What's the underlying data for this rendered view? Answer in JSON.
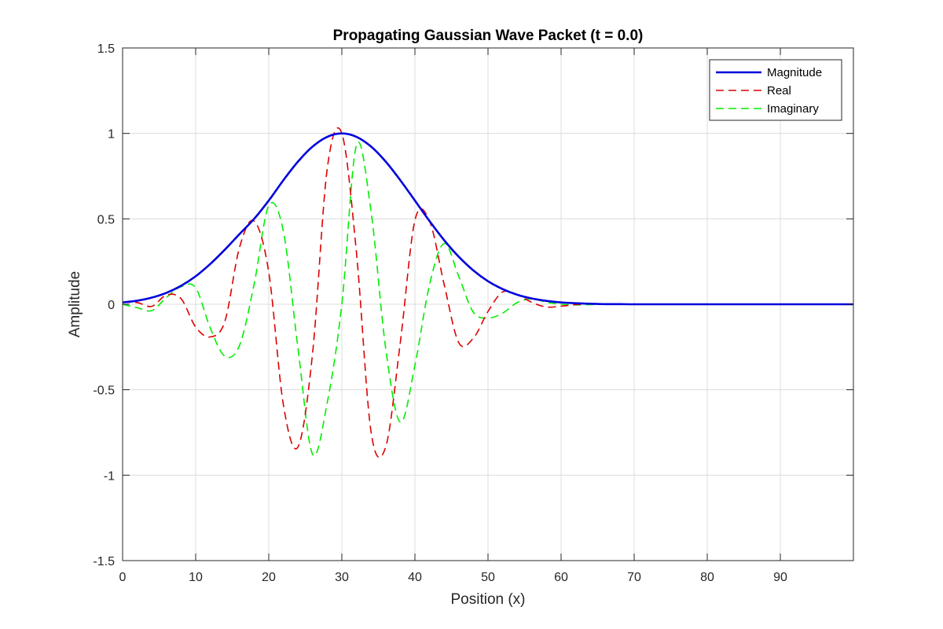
{
  "chart_data": {
    "type": "line",
    "title": "Propagating Gaussian Wave Packet (t = 0.0)",
    "xlabel": "Position (x)",
    "ylabel": "Amplitude",
    "xlim": [
      0,
      100
    ],
    "ylim": [
      -1.5,
      1.5
    ],
    "xticks": [
      0,
      10,
      20,
      30,
      40,
      50,
      60,
      70,
      80,
      90
    ],
    "xtick_labels": [
      "0",
      "10",
      "20",
      "30",
      "40",
      "50",
      "60",
      "70",
      "80",
      "90"
    ],
    "yticks": [
      1.5,
      1,
      0.5,
      0,
      -0.5,
      -1,
      -1.5
    ],
    "ytick_labels": [
      "1.5",
      "1",
      "0.5",
      "0",
      "-0.5",
      "-1",
      "-1.5"
    ],
    "grid": true,
    "legend_position": "top-right",
    "x": [
      0,
      2,
      4,
      6,
      8,
      10,
      12,
      14,
      16,
      18,
      20,
      22,
      24,
      26,
      28,
      30,
      32,
      34,
      36,
      38,
      40,
      42,
      44,
      46,
      48,
      50,
      52,
      54,
      56,
      58,
      60,
      62,
      64,
      66,
      68,
      70,
      75,
      80,
      85,
      90,
      95,
      100
    ],
    "series": [
      {
        "name": "Magnitude",
        "color": "#0000dd",
        "style": "solid",
        "values": [
          0.011,
          0.021,
          0.039,
          0.067,
          0.108,
          0.164,
          0.236,
          0.32,
          0.411,
          0.5,
          0.607,
          0.726,
          0.835,
          0.923,
          0.98,
          1.0,
          0.98,
          0.923,
          0.835,
          0.726,
          0.607,
          0.487,
          0.375,
          0.278,
          0.198,
          0.135,
          0.089,
          0.056,
          0.034,
          0.02,
          0.011,
          0.006,
          0.003,
          0.001,
          0.001,
          0.0,
          0.0,
          0.0,
          0.0,
          0.0,
          0.0,
          0.0
        ]
      },
      {
        "name": "Real",
        "color": "#dd0000",
        "style": "dashed",
        "values": [
          0.011,
          0.01,
          -0.012,
          0.054,
          0.033,
          -0.133,
          -0.191,
          -0.099,
          0.333,
          0.487,
          0.187,
          -0.588,
          -0.835,
          -0.285,
          0.793,
          1.0,
          0.303,
          -0.747,
          -0.835,
          -0.224,
          0.491,
          0.487,
          0.116,
          -0.225,
          -0.198,
          -0.042,
          0.072,
          0.056,
          0.011,
          -0.016,
          -0.011,
          -0.002,
          0.002,
          0.001,
          0.0,
          0.0,
          0.0,
          0.0,
          0.0,
          0.0,
          0.0,
          0.0
        ]
      },
      {
        "name": "Imaginary",
        "color": "#00ee00",
        "style": "dashed",
        "values": [
          0.0,
          -0.02,
          -0.037,
          0.04,
          0.103,
          0.096,
          -0.139,
          -0.304,
          -0.241,
          0.118,
          0.577,
          0.427,
          -0.258,
          -0.878,
          -0.576,
          0.0,
          0.932,
          0.542,
          -0.258,
          -0.69,
          -0.357,
          0.115,
          0.356,
          0.163,
          -0.047,
          -0.08,
          -0.052,
          0.01,
          0.032,
          0.012,
          0.0,
          -0.004,
          -0.002,
          0.0,
          0.001,
          0.0,
          0.0,
          0.0,
          0.0,
          0.0,
          0.0,
          0.0
        ]
      }
    ]
  }
}
